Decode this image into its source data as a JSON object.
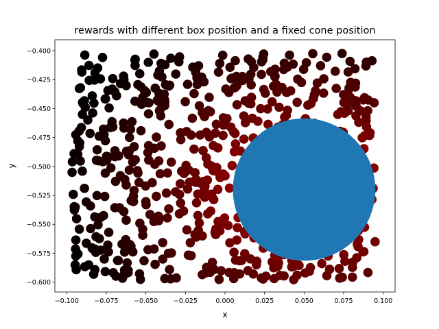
{
  "chart_data": {
    "type": "scatter",
    "title": "rewards with different box position and a fixed cone position",
    "xlabel": "x",
    "ylabel": "y",
    "xlim": [
      -0.1075,
      0.1075
    ],
    "ylim": [
      -0.6085,
      -0.3905
    ],
    "xticks": [
      -0.1,
      -0.075,
      -0.05,
      -0.025,
      0.0,
      0.025,
      0.05,
      0.075,
      0.1
    ],
    "xtick_labels": [
      "−0.100",
      "−0.075",
      "−0.050",
      "−0.025",
      "0.000",
      "0.025",
      "0.050",
      "0.075",
      "0.100"
    ],
    "yticks": [
      -0.4,
      -0.425,
      -0.45,
      -0.475,
      -0.5,
      -0.525,
      -0.55,
      -0.575,
      -0.6
    ],
    "ytick_labels": [
      "−0.400",
      "−0.425",
      "−0.450",
      "−0.475",
      "−0.500",
      "−0.525",
      "−0.550",
      "−0.575",
      "−0.600"
    ],
    "grid": false,
    "legend": "none",
    "colors": {
      "low_reward": "#000000",
      "high_reward": "#cc0000",
      "cone": "#1f77b4"
    },
    "cone": {
      "x": 0.05,
      "y": -0.52,
      "radius": 0.045
    },
    "box_positions": {
      "count": 700,
      "x_range": [
        -0.097,
        0.095
      ],
      "y_range": [
        -0.598,
        -0.402
      ],
      "color_encodes": "reward (black = low, red = high)"
    }
  }
}
